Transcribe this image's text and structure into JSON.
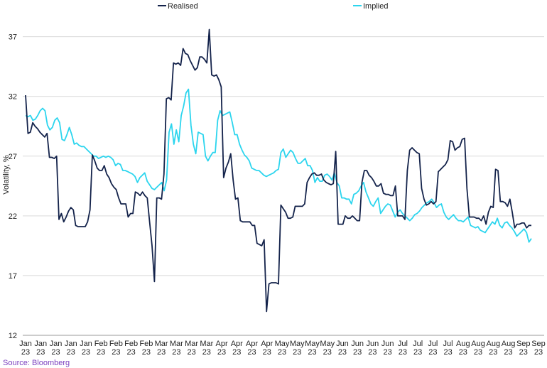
{
  "chart_data": {
    "type": "line",
    "title": "",
    "xlabel": "",
    "ylabel": "Volatility, %",
    "ylim": [
      12,
      39
    ],
    "yticks": [
      12,
      17,
      22,
      27,
      32,
      37
    ],
    "grid": "horizontal",
    "legend_position": "top",
    "x_tick_labels": [
      "Jan",
      "Jan",
      "Jan",
      "Jan",
      "Jan",
      "Feb",
      "Feb",
      "Feb",
      "Feb",
      "Mar",
      "Mar",
      "Mar",
      "Mar",
      "Apr",
      "Apr",
      "Apr",
      "Apr",
      "May",
      "May",
      "May",
      "May",
      "Jun",
      "Jun",
      "Jun",
      "Jun",
      "Jul",
      "Jul",
      "Jul",
      "Jul",
      "Aug",
      "Aug",
      "Aug",
      "Aug",
      "Sep",
      "Sep"
    ],
    "x_tick_sublabel": "23",
    "series": [
      {
        "name": "Realised",
        "color": "#14234b",
        "values": [
          32.1,
          28.9,
          29.0,
          29.8,
          29.5,
          29.3,
          29.0,
          28.8,
          28.6,
          28.9,
          26.9,
          26.9,
          26.8,
          27.0,
          21.7,
          22.2,
          21.5,
          21.9,
          22.4,
          22.7,
          22.5,
          21.2,
          21.1,
          21.1,
          21.1,
          21.1,
          21.5,
          22.5,
          27.1,
          26.6,
          26.0,
          25.8,
          25.8,
          26.2,
          25.5,
          25.2,
          24.7,
          24.4,
          24.2,
          23.5,
          23.0,
          23.0,
          23.0,
          21.9,
          22.2,
          22.2,
          24.0,
          23.9,
          23.7,
          24.0,
          23.7,
          23.5,
          21.5,
          19.5,
          16.5,
          23.5,
          23.5,
          23.4,
          25.5,
          31.8,
          31.9,
          31.7,
          34.8,
          34.7,
          34.8,
          34.6,
          36.0,
          35.6,
          35.5,
          35.0,
          34.6,
          34.2,
          34.4,
          35.3,
          35.3,
          35.1,
          34.8,
          37.6,
          33.8,
          33.7,
          33.8,
          33.4,
          32.8,
          25.2,
          26.0,
          26.5,
          27.2,
          25.0,
          23.4,
          23.5,
          21.6,
          21.5,
          21.5,
          21.5,
          21.5,
          21.2,
          21.2,
          19.7,
          19.6,
          19.5,
          20.0,
          14.0,
          16.3,
          16.4,
          16.4,
          16.4,
          16.3,
          22.9,
          22.6,
          22.3,
          21.8,
          21.8,
          21.9,
          22.8,
          22.8,
          22.8,
          22.8,
          23.0,
          24.8,
          25.2,
          25.5,
          25.6,
          25.4,
          25.4,
          25.5,
          25.0,
          24.8,
          24.7,
          24.6,
          24.7,
          27.4,
          21.3,
          21.3,
          21.3,
          22.0,
          21.8,
          21.8,
          22.0,
          21.8,
          21.6,
          21.6,
          24.8,
          25.8,
          25.8,
          25.4,
          25.2,
          24.9,
          24.5,
          24.5,
          24.7,
          23.9,
          23.8,
          23.8,
          23.7,
          23.7,
          24.5,
          22.0,
          22.0,
          22.0,
          21.7,
          25.8,
          27.5,
          27.7,
          27.5,
          27.3,
          27.2,
          24.3,
          23.4,
          22.9,
          23.0,
          23.2,
          23.0,
          23.2,
          25.7,
          25.9,
          26.1,
          26.3,
          26.7,
          28.3,
          28.2,
          27.5,
          27.7,
          27.8,
          28.4,
          28.5,
          24.3,
          21.9,
          21.9,
          21.9,
          21.8,
          21.8,
          21.6,
          22.0,
          21.3,
          22.3,
          22.8,
          22.7,
          25.9,
          25.8,
          23.2,
          23.2,
          23.1,
          22.8,
          23.4,
          22.3,
          21.0,
          21.3,
          21.3,
          21.4,
          21.4,
          21.0,
          21.2,
          21.2
        ]
      },
      {
        "name": "Implied",
        "color": "#2cd5ee",
        "values": [
          30.4,
          30.3,
          30.4,
          30.0,
          30.1,
          30.4,
          30.8,
          31.0,
          30.8,
          29.6,
          29.2,
          29.4,
          30.0,
          30.2,
          29.8,
          28.4,
          28.3,
          28.8,
          29.4,
          28.8,
          28.0,
          28.1,
          27.9,
          27.8,
          27.8,
          27.6,
          27.4,
          27.2,
          27.0,
          27.0,
          26.8,
          26.9,
          27.0,
          26.9,
          27.0,
          26.9,
          26.7,
          26.2,
          26.4,
          26.3,
          25.8,
          25.8,
          25.7,
          25.6,
          25.5,
          25.3,
          24.8,
          25.2,
          25.4,
          25.6,
          24.9,
          24.6,
          24.3,
          24.2,
          24.4,
          24.6,
          24.8,
          24.1,
          25.0,
          29.0,
          29.7,
          28.0,
          29.2,
          28.2,
          30.4,
          31.2,
          32.3,
          32.6,
          29.6,
          28.0,
          27.2,
          29.0,
          28.9,
          28.8,
          27.0,
          26.6,
          27.0,
          27.3,
          27.3,
          30.0,
          30.8,
          30.4,
          30.5,
          30.6,
          30.7,
          29.8,
          28.8,
          28.8,
          28.0,
          27.5,
          27.1,
          26.9,
          26.6,
          26.0,
          25.9,
          25.8,
          25.8,
          25.6,
          25.4,
          25.3,
          25.4,
          25.5,
          25.6,
          25.8,
          25.9,
          27.3,
          27.6,
          26.9,
          27.2,
          27.5,
          27.3,
          26.8,
          26.4,
          26.4,
          26.6,
          26.8,
          26.2,
          26.2,
          25.8,
          24.8,
          25.2,
          24.9,
          24.9,
          25.4,
          25.5,
          25.3,
          25.0,
          25.6,
          24.8,
          24.5,
          23.5,
          23.5,
          23.4,
          23.4,
          23.0,
          23.8,
          23.9,
          24.1,
          24.5,
          24.8,
          24.0,
          23.5,
          23.0,
          22.8,
          23.2,
          23.5,
          22.2,
          22.5,
          22.8,
          23.0,
          22.9,
          22.4,
          21.9,
          22.3,
          22.5,
          22.2,
          22.0,
          21.8,
          21.6,
          21.8,
          22.1,
          22.2,
          22.4,
          22.7,
          22.9,
          23.1,
          23.2,
          23.4,
          23.1,
          22.7,
          22.9,
          23.0,
          22.3,
          21.9,
          21.7,
          21.9,
          22.1,
          21.8,
          21.6,
          21.6,
          21.5,
          21.7,
          21.9,
          21.2,
          21.1,
          21.0,
          21.1,
          20.8,
          20.7,
          20.6,
          20.9,
          21.2,
          21.5,
          21.3,
          21.8,
          21.2,
          21.0,
          21.4,
          21.5,
          21.2,
          21.0,
          20.7,
          20.3,
          20.5,
          20.7,
          20.9,
          20.6,
          19.8,
          20.1
        ]
      }
    ]
  },
  "source_text": "Source: Bloomberg"
}
